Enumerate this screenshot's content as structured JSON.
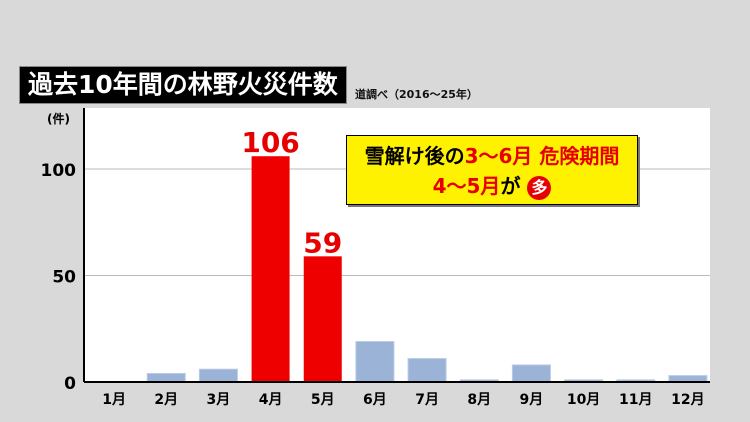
{
  "title": "過去10年間の林野火災件数",
  "source": "道調べ（2016〜25年）",
  "note": {
    "line1_a": "雪解け後の",
    "line1_b": "3〜6月 危険期間",
    "line2_a": "4〜5月",
    "line2_b": "が",
    "line2_c": "多"
  },
  "chart_data": {
    "type": "bar",
    "ylabel": "(件)",
    "categories": [
      "1月",
      "2月",
      "3月",
      "4月",
      "5月",
      "6月",
      "7月",
      "8月",
      "9月",
      "10月",
      "11月",
      "12月"
    ],
    "values": [
      0,
      4,
      6,
      106,
      59,
      19,
      11,
      1,
      8,
      1,
      1,
      3
    ],
    "data_labels": {
      "3": "106",
      "4": "59"
    },
    "yticks": [
      0,
      50,
      100
    ],
    "ylim": [
      0,
      129
    ],
    "grid": true,
    "colors": {
      "normal": "#9ab3d6",
      "highlight": "#ee0000"
    },
    "highlight": [
      3,
      4
    ]
  }
}
